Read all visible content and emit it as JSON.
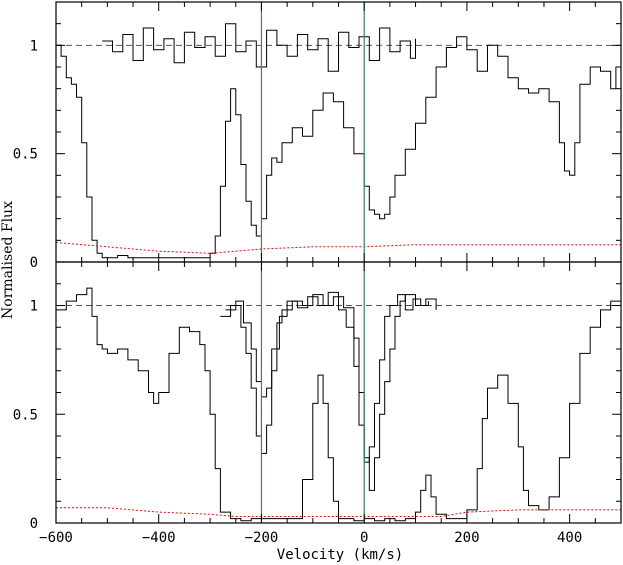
{
  "chart_data": [
    {
      "type": "line",
      "panel": "top",
      "xlim": [
        -600,
        500
      ],
      "ylim": [
        0,
        1.2
      ],
      "yticks": [
        {
          "value": 0,
          "label": "0"
        },
        {
          "value": 0.5,
          "label": "0.5"
        },
        {
          "value": 1,
          "label": "1"
        }
      ],
      "continuum_level": 1,
      "vertical_markers": [
        -200,
        0
      ],
      "series": [
        {
          "style": "solid-steps",
          "x": [
            -600,
            -590,
            -580,
            -570,
            -560,
            -550,
            -540,
            -530,
            -520,
            -510,
            -500,
            -490,
            -480,
            -460,
            -440,
            -420,
            -400,
            -380,
            -360,
            -340,
            -320,
            -300,
            -290,
            -280,
            -270,
            -260,
            -250,
            -240,
            -230,
            -220,
            -210,
            -200,
            -190,
            -180,
            -170,
            -160,
            -140,
            -120,
            -100,
            -80,
            -60,
            -40,
            -20,
            0,
            10,
            20,
            30,
            40,
            50,
            60,
            80,
            100,
            120,
            140,
            160,
            180,
            200,
            220,
            240,
            260,
            280,
            300,
            320,
            340,
            360,
            380,
            390,
            400,
            410,
            420,
            440,
            460,
            480,
            490,
            500
          ],
          "y": [
            1.0,
            0.95,
            0.85,
            0.82,
            0.76,
            0.55,
            0.3,
            0.1,
            0.04,
            0.02,
            0.02,
            0.02,
            0.03,
            0.02,
            0.02,
            0.02,
            0.02,
            0.02,
            0.02,
            0.02,
            0.02,
            0.04,
            0.12,
            0.35,
            0.65,
            0.8,
            0.68,
            0.45,
            0.28,
            0.17,
            0.12,
            0.2,
            0.4,
            0.48,
            0.46,
            0.55,
            0.62,
            0.58,
            0.7,
            0.78,
            0.74,
            0.62,
            0.5,
            0.35,
            0.24,
            0.22,
            0.2,
            0.22,
            0.3,
            0.4,
            0.52,
            0.64,
            0.76,
            0.9,
            0.99,
            1.04,
            0.98,
            0.88,
            1.0,
            0.95,
            0.85,
            0.8,
            0.78,
            0.8,
            0.74,
            0.55,
            0.42,
            0.4,
            0.55,
            0.82,
            0.9,
            0.88,
            0.8,
            0.9,
            0.98
          ]
        },
        {
          "style": "solid-steps",
          "x": [
            -510,
            -490,
            -470,
            -450,
            -430,
            -410,
            -390,
            -370,
            -350,
            -330,
            -310,
            -290,
            -270,
            -250,
            -230,
            -210,
            -190,
            -170,
            -150,
            -130,
            -110,
            -90,
            -70,
            -50,
            -30,
            -10,
            10,
            30,
            50,
            70,
            90,
            100
          ],
          "y": [
            1.02,
            0.97,
            1.05,
            0.93,
            1.08,
            0.98,
            1.03,
            0.92,
            1.06,
            0.99,
            1.04,
            0.95,
            1.1,
            0.97,
            1.02,
            0.9,
            1.07,
            1.0,
            0.95,
            1.05,
            0.98,
            1.03,
            0.88,
            1.06,
            0.99,
            1.04,
            0.93,
            1.08,
            0.97,
            1.02,
            0.94,
            1.03
          ]
        },
        {
          "style": "red-dotted",
          "x": [
            -600,
            -500,
            -400,
            -300,
            -250,
            -200,
            -100,
            0,
            100,
            200,
            300,
            400,
            500
          ],
          "y": [
            0.09,
            0.07,
            0.05,
            0.04,
            0.05,
            0.06,
            0.07,
            0.07,
            0.08,
            0.08,
            0.08,
            0.08,
            0.08
          ]
        }
      ]
    },
    {
      "type": "line",
      "panel": "bottom",
      "xlim": [
        -600,
        500
      ],
      "ylim": [
        0,
        1.2
      ],
      "xticks": [
        {
          "value": -600,
          "label": "−600"
        },
        {
          "value": -400,
          "label": "−400"
        },
        {
          "value": -200,
          "label": "−200"
        },
        {
          "value": 0,
          "label": "0"
        },
        {
          "value": 200,
          "label": "200"
        },
        {
          "value": 400,
          "label": "400"
        }
      ],
      "yticks": [
        {
          "value": 0,
          "label": "0"
        },
        {
          "value": 0.5,
          "label": "0.5"
        },
        {
          "value": 1,
          "label": "1"
        }
      ],
      "continuum_level": 1,
      "vertical_markers": [
        -200,
        0
      ],
      "series": [
        {
          "style": "solid-steps",
          "x": [
            -600,
            -580,
            -560,
            -540,
            -530,
            -520,
            -510,
            -500,
            -480,
            -460,
            -440,
            -420,
            -410,
            -400,
            -380,
            -360,
            -340,
            -320,
            -310,
            -300,
            -290,
            -280,
            -260,
            -240,
            -220,
            -200,
            -180,
            -160,
            -140,
            -120,
            -100,
            -90,
            -80,
            -70,
            -60,
            -50,
            -40,
            -20,
            0,
            20,
            40,
            60,
            80,
            100,
            110,
            120,
            130,
            140,
            160,
            180,
            200,
            220,
            230,
            240,
            260,
            280,
            300,
            310,
            320,
            340,
            360,
            380,
            400,
            420,
            440,
            460,
            480,
            500
          ],
          "y": [
            0.98,
            1.02,
            1.05,
            1.08,
            0.95,
            0.82,
            0.8,
            0.78,
            0.8,
            0.75,
            0.7,
            0.6,
            0.55,
            0.6,
            0.78,
            0.9,
            0.88,
            0.82,
            0.7,
            0.5,
            0.25,
            0.05,
            0.02,
            0.01,
            0.02,
            0.02,
            0.02,
            0.02,
            0.02,
            0.2,
            0.55,
            0.68,
            0.55,
            0.3,
            0.1,
            0.02,
            0.02,
            0.01,
            0.02,
            0.01,
            0.02,
            0.01,
            0.02,
            0.05,
            0.15,
            0.22,
            0.12,
            0.04,
            0.02,
            0.02,
            0.06,
            0.25,
            0.48,
            0.62,
            0.68,
            0.55,
            0.35,
            0.15,
            0.08,
            0.06,
            0.12,
            0.3,
            0.55,
            0.78,
            0.9,
            0.98,
            1.02,
            0.97
          ]
        },
        {
          "style": "solid-steps",
          "x": [
            -280,
            -260,
            -240,
            -230,
            -220,
            -210,
            -200,
            -190,
            -180,
            -170,
            -160,
            -140,
            -120,
            -100,
            -80,
            -60,
            -40,
            -20,
            -10,
            0,
            10,
            20,
            30,
            40,
            50,
            60,
            70,
            80,
            100,
            120,
            140
          ],
          "y": [
            0.95,
            1.0,
            0.9,
            0.78,
            0.62,
            0.4,
            0.32,
            0.45,
            0.7,
            0.92,
            0.98,
            1.02,
            1.0,
            1.05,
            1.0,
            1.04,
            0.99,
            0.85,
            0.6,
            0.3,
            0.15,
            0.3,
            0.5,
            0.65,
            0.8,
            0.95,
            1.02,
            1.05,
            1.0,
            1.03,
            0.98
          ]
        },
        {
          "style": "solid-steps",
          "x": [
            -270,
            -250,
            -235,
            -220,
            -210,
            -200,
            -190,
            -180,
            -165,
            -150,
            -130,
            -110,
            -90,
            -70,
            -50,
            -35,
            -20,
            -10,
            0,
            10,
            20,
            30,
            40,
            50,
            65,
            80,
            95,
            110,
            125
          ],
          "y": [
            0.98,
            1.02,
            0.92,
            0.8,
            0.65,
            0.58,
            0.62,
            0.8,
            0.95,
            1.02,
            0.99,
            1.04,
            1.0,
            1.06,
            0.98,
            0.9,
            0.72,
            0.45,
            0.28,
            0.35,
            0.55,
            0.75,
            0.95,
            1.0,
            1.05,
            0.98,
            1.03,
            1.0,
            1.02
          ]
        },
        {
          "style": "red-dotted",
          "x": [
            -600,
            -500,
            -400,
            -300,
            -250,
            -200,
            -100,
            0,
            100,
            150,
            200,
            300,
            400,
            500
          ],
          "y": [
            0.07,
            0.07,
            0.05,
            0.04,
            0.03,
            0.03,
            0.03,
            0.03,
            0.03,
            0.03,
            0.05,
            0.06,
            0.06,
            0.06
          ]
        }
      ]
    }
  ],
  "axes": {
    "xlabel": "Velocity (km/s)",
    "ylabel": "Normalised Flux"
  },
  "colors": {
    "spectrum": "#000000",
    "continuum": "#555555",
    "error": "#ff0000",
    "marker": "#2e8b57"
  }
}
